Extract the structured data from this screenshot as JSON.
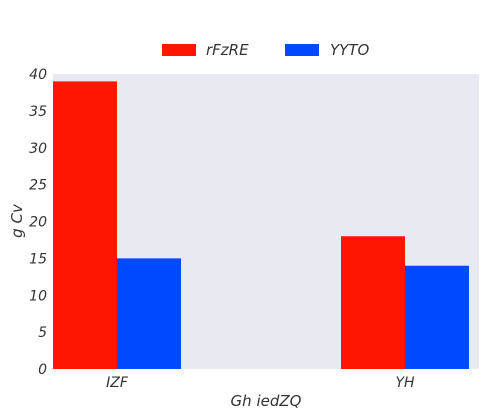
{
  "chart_data": {
    "type": "bar",
    "categories": [
      "IZF",
      "YH"
    ],
    "series": [
      {
        "name": "rFzRE",
        "values": [
          39,
          18
        ]
      },
      {
        "name": "YYTO",
        "values": [
          15,
          14
        ]
      }
    ],
    "xlabel": "Gh  iedZQ",
    "ylabel": "g Cv",
    "ylim": [
      0,
      40
    ],
    "yticks": [
      0,
      5,
      10,
      15,
      20,
      25,
      30,
      35,
      40
    ],
    "grid": false,
    "legend": "top-center",
    "colors": {
      "series": [
        "#ff1500",
        "#0049ff"
      ],
      "plot_background": "#e9e9f2"
    }
  }
}
